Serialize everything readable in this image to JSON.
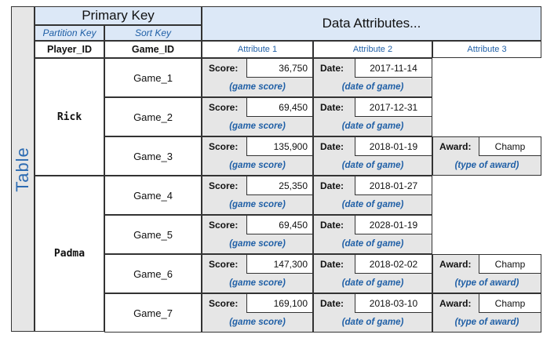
{
  "table_label": "Table",
  "primary_key": {
    "title": "Primary Key",
    "partition_key": "Partition Key",
    "sort_key": "Sort Key"
  },
  "data_attributes": {
    "title": "Data Attributes...",
    "columns": [
      "Attribute 1",
      "Attribute 2",
      "Attribute 3"
    ]
  },
  "column_names": {
    "player_id": "Player_ID",
    "game_id": "Game_ID"
  },
  "labels": {
    "score": "Score:",
    "date": "Date:",
    "award": "Award:",
    "score_desc": "(game score)",
    "date_desc": "(date of game)",
    "award_desc": "(type of award)"
  },
  "partitions": [
    {
      "player": "Rick",
      "items": [
        {
          "game": "Game_1",
          "score": "36,750",
          "date": "2017-11-14",
          "award": null
        },
        {
          "game": "Game_2",
          "score": "69,450",
          "date": "2017-12-31",
          "award": null
        },
        {
          "game": "Game_3",
          "score": "135,900",
          "date": "2018-01-19",
          "award": "Champ"
        }
      ]
    },
    {
      "player": "Padma",
      "items": [
        {
          "game": "Game_4",
          "score": "25,350",
          "date": "2018-01-27",
          "award": null
        },
        {
          "game": "Game_5",
          "score": "69,450",
          "date": "2028-01-19",
          "award": null
        },
        {
          "game": "Game_6",
          "score": "147,300",
          "date": "2018-02-02",
          "award": "Champ"
        },
        {
          "game": "Game_7",
          "score": "169,100",
          "date": "2018-03-10",
          "award": "Champ"
        }
      ]
    }
  ]
}
